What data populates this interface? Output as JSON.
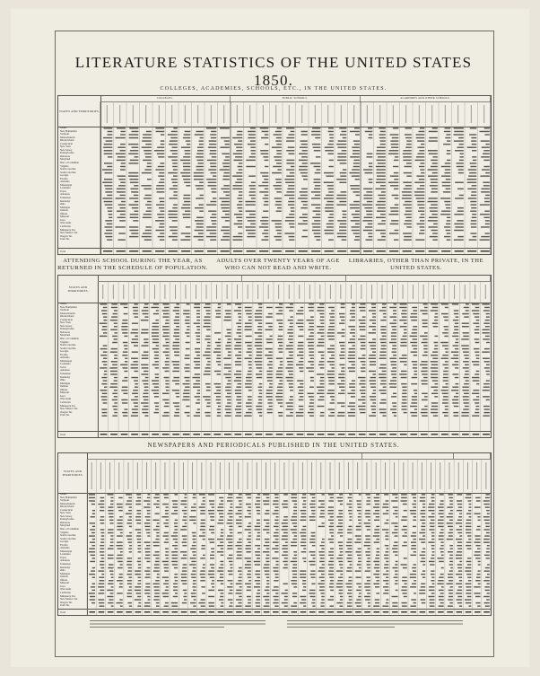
{
  "title": "LITERATURE STATISTICS OF THE UNITED STATES 1850.",
  "section1": {
    "heading": "COLLEGES, ACADEMIES, SCHOOLS, ETC., IN THE UNITED STATES.",
    "stub_header": "STATES AND TERRITORIES.",
    "groups": [
      "COLLEGES.",
      "PUBLIC SCHOOLS.",
      "ACADEMIES AND OTHER SCHOOLS."
    ],
    "total_label": "Total"
  },
  "section2": {
    "heading_left": "ATTENDING SCHOOL DURING THE YEAR, AS RETURNED IN THE SCHEDULE OF POPULATION.",
    "heading_mid": "ADULTS OVER TWENTY YEARS OF AGE WHO CAN NOT READ AND WRITE.",
    "heading_right": "LIBRARIES, OTHER THAN PRIVATE, IN THE UNITED STATES.",
    "stub_header": "STATES AND TERRITORIES.",
    "total_label": "Total"
  },
  "section3": {
    "heading": "NEWSPAPERS AND PERIODICALS PUBLISHED IN THE UNITED STATES.",
    "stub_header": "STATES AND TERRITORIES.",
    "total_label": "Total"
  },
  "states": [
    "Maine",
    "New Hampshire",
    "Vermont",
    "Massachusetts",
    "Rhode Island",
    "Connecticut",
    "New York",
    "New Jersey",
    "Pennsylvania",
    "Delaware",
    "Maryland",
    "Dist. of Columbia",
    "Virginia",
    "North Carolina",
    "South Carolina",
    "Georgia",
    "Florida",
    "Alabama",
    "Mississippi",
    "Louisiana",
    "Texas",
    "Arkansas",
    "Tennessee",
    "Kentucky",
    "Ohio",
    "Michigan",
    "Indiana",
    "Illinois",
    "Missouri",
    "Iowa",
    "Wisconsin",
    "California",
    "Minnesota Ter.",
    "New Mexico Ter.",
    "Oregon Ter.",
    "Utah Ter."
  ]
}
